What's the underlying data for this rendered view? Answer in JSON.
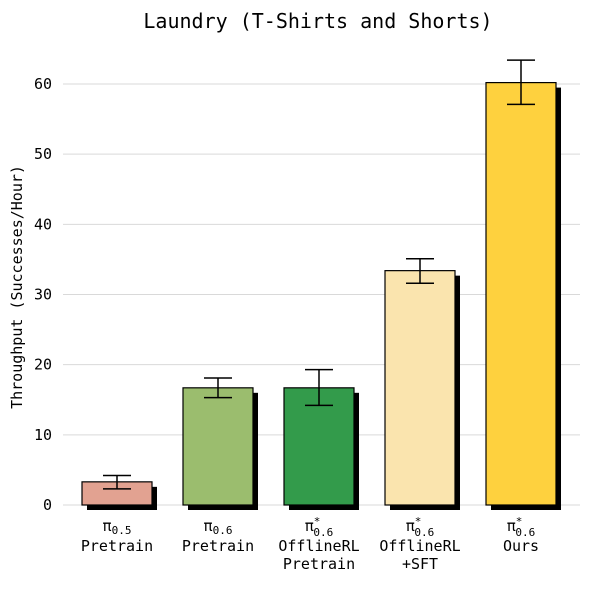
{
  "chart_data": {
    "type": "bar",
    "title": "Laundry (T-Shirts and Shorts)",
    "xlabel": "",
    "ylabel": "Throughput (Successes/Hour)",
    "ylim": [
      0,
      65
    ],
    "yticks": [
      0,
      10,
      20,
      30,
      40,
      50,
      60
    ],
    "grid": true,
    "categories": [
      {
        "sym": "π",
        "sub": "0.5",
        "sup": "",
        "lines": [
          "Pretrain"
        ]
      },
      {
        "sym": "π",
        "sub": "0.6",
        "sup": "",
        "lines": [
          "Pretrain"
        ]
      },
      {
        "sym": "π",
        "sub": "0.6",
        "sup": "*",
        "lines": [
          "OfflineRL",
          "Pretrain"
        ]
      },
      {
        "sym": "π",
        "sub": "0.6",
        "sup": "*",
        "lines": [
          "OfflineRL",
          "+SFT"
        ]
      },
      {
        "sym": "π",
        "sub": "0.6",
        "sup": "*",
        "lines": [
          "Ours"
        ]
      }
    ],
    "values": [
      3.3,
      16.7,
      16.7,
      33.4,
      60.2
    ],
    "error_low": [
      2.3,
      15.3,
      14.2,
      31.6,
      57.1
    ],
    "error_high": [
      4.2,
      18.1,
      19.3,
      35.1,
      63.4
    ],
    "colors": [
      "#e2a291",
      "#9bbd6e",
      "#339b4b",
      "#fae4ae",
      "#fed13e"
    ]
  }
}
